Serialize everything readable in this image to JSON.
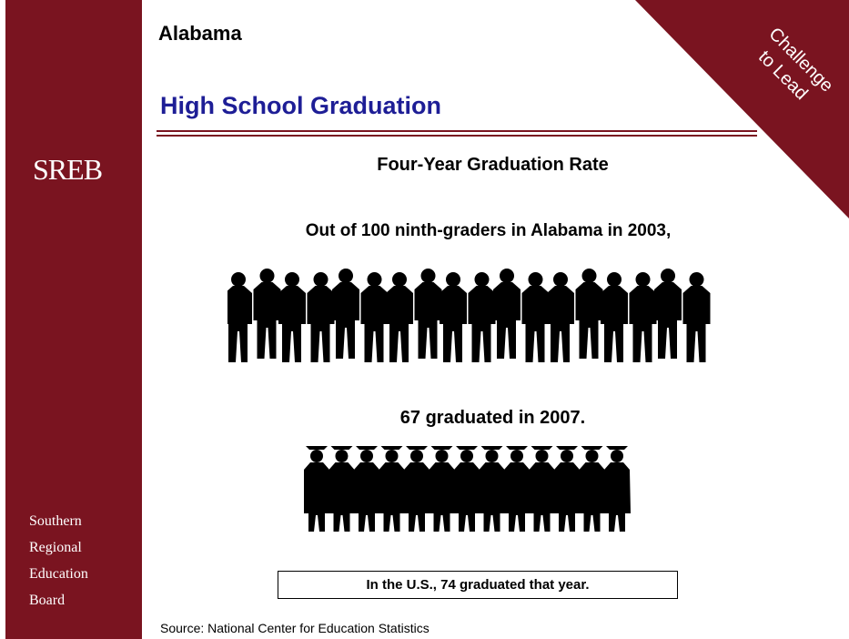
{
  "sidebar": {
    "logo": "SREB",
    "org_lines": [
      "Southern",
      "Regional",
      "Education",
      "Board"
    ]
  },
  "header": {
    "state": "Alabama",
    "title": "High School Graduation"
  },
  "corner_banner": {
    "line1": "Challenge",
    "line2": "to Lead"
  },
  "main": {
    "chart_title": "Four-Year Graduation Rate",
    "intro": "Out of 100 ninth-graders in Alabama in 2003,",
    "graduated": "67 graduated in 2007.",
    "us_comparison": "In the U.S., 74 graduated that year.",
    "source": "Source: National Center for Education Statistics"
  },
  "figures": {
    "ninth_grader_icon": "student-silhouette-icon",
    "graduate_icon": "graduate-silhouette-icon",
    "ninth_graders": 100,
    "graduated_value": 67,
    "us_value": 74
  },
  "colors": {
    "sidebar": "#7a1420",
    "title": "#1e1e96"
  }
}
